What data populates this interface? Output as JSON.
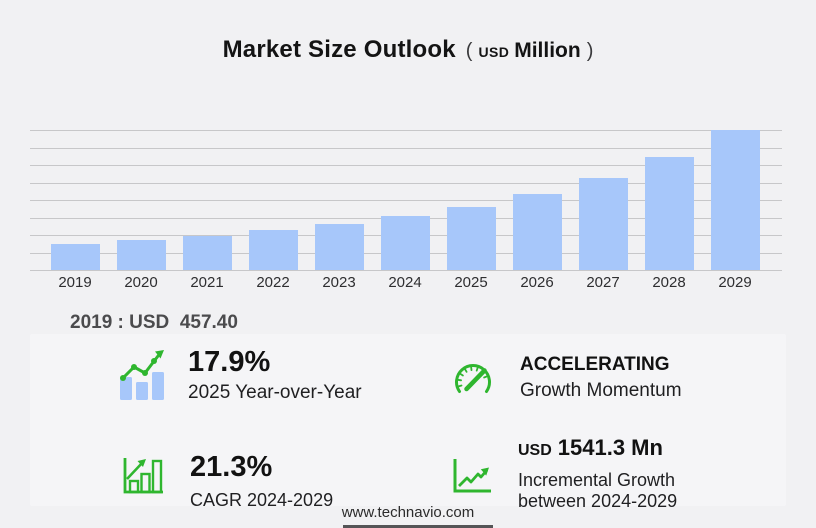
{
  "title": {
    "main": "Market Size Outlook",
    "paren_open": "(",
    "currency": "USD",
    "unit": "Million",
    "paren_close": ")"
  },
  "chart_data": {
    "type": "bar",
    "title": "Market Size Outlook (USD Million)",
    "categories": [
      "2019",
      "2020",
      "2021",
      "2022",
      "2023",
      "2024",
      "2025",
      "2026",
      "2027",
      "2028",
      "2029"
    ],
    "values": [
      457.4,
      528,
      612,
      710,
      824,
      955,
      1126,
      1360,
      1645,
      2020,
      2496
    ],
    "labeled_values": {
      "2019": 457.4
    },
    "xlabel": "",
    "ylabel": "",
    "ylim": [
      0,
      2496
    ],
    "grid": true,
    "gridline_count": 9,
    "bar_color": "#a7c7fa",
    "legend": null
  },
  "annotation": {
    "text": "2019 : USD  457.40"
  },
  "stats": {
    "yoy": {
      "icon": "trend-bars-icon",
      "value": "17.9%",
      "label": "2025 Year-over-Year"
    },
    "momentum": {
      "icon": "speedometer-icon",
      "value": "ACCELERATING",
      "label": "Growth Momentum"
    },
    "cagr": {
      "icon": "growth-bars-icon",
      "value": "21.3%",
      "label": "CAGR 2024-2029"
    },
    "incremental": {
      "icon": "line-chart-icon",
      "value_prefix": "USD",
      "value": "1541.3 Mn",
      "label_line1": "Incremental Growth",
      "label_line2": "between 2024-2029"
    }
  },
  "footer": {
    "website": "www.technavio.com"
  },
  "colors": {
    "background": "#f1f1f3",
    "panel": "#f5f5f7",
    "bar_blue": "#a7c7fa",
    "accent_green": "#2fb62f",
    "gridline": "#c7c7c9",
    "text_dark": "#141414",
    "text_gray": "#4b4b4d"
  }
}
